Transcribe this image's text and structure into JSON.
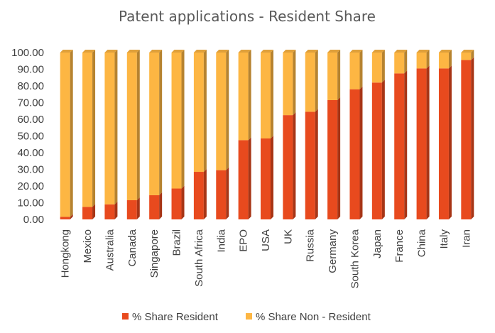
{
  "chart_data": {
    "type": "bar",
    "stacked": true,
    "title": "Patent applications - Resident Share",
    "categories": [
      "Hongkong",
      "Mexico",
      "Australia",
      "Canada",
      "Singapore",
      "Brazil",
      "South Africa",
      "India",
      "EPO",
      "USA",
      "UK",
      "Russia",
      "Germany",
      "South Korea",
      "Japan",
      "France",
      "China",
      "Italy",
      "Iran"
    ],
    "series": [
      {
        "name": "% Share Resident",
        "color": "#E84A1E",
        "values": [
          1.5,
          7.5,
          9.0,
          11.5,
          14.5,
          18.5,
          28.5,
          29.5,
          47.5,
          48.5,
          62.5,
          64.5,
          71.5,
          78.0,
          82.0,
          87.5,
          90.5,
          90.5,
          95.5
        ]
      },
      {
        "name": "% Share Non - Resident",
        "color": "#FDB643",
        "values": [
          98.5,
          92.5,
          91.0,
          88.5,
          85.5,
          81.5,
          71.5,
          70.5,
          52.5,
          51.5,
          37.5,
          35.5,
          28.5,
          22.0,
          18.0,
          12.5,
          9.5,
          9.5,
          4.5
        ]
      }
    ],
    "ylim": [
      0,
      100
    ],
    "yticks": [
      "0.00",
      "10.00",
      "20.00",
      "30.00",
      "40.00",
      "50.00",
      "60.00",
      "70.00",
      "80.00",
      "90.00",
      "100.00"
    ],
    "legend": "bottom",
    "grid": false
  }
}
